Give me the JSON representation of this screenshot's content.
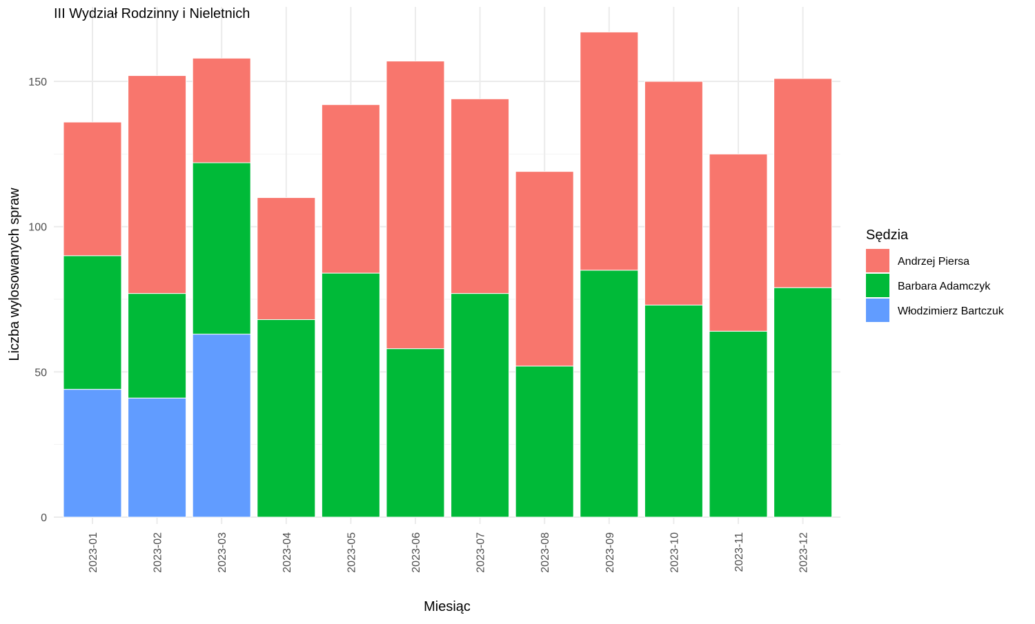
{
  "chart_data": {
    "type": "bar",
    "stacked": true,
    "title": "III Wydział Rodzinny i Nieletnich",
    "xlabel": "Miesiąc",
    "ylabel": "Liczba wylosowanych spraw",
    "ylim": [
      0,
      172
    ],
    "yticks": [
      0,
      50,
      100,
      150
    ],
    "ytick_labels": [
      "0",
      "50",
      "100",
      "150"
    ],
    "grid": true,
    "legend_title": "Sędzia",
    "legend_position": "right",
    "categories": [
      "2023-01",
      "2023-02",
      "2023-03",
      "2023-04",
      "2023-05",
      "2023-06",
      "2023-07",
      "2023-08",
      "2023-09",
      "2023-10",
      "2023-11",
      "2023-12"
    ],
    "series": [
      {
        "name": "Andrzej Piersa",
        "color": "#F8766D",
        "values": [
          46,
          75,
          36,
          42,
          58,
          99,
          67,
          67,
          82,
          77,
          61,
          72
        ]
      },
      {
        "name": "Barbara Adamczyk",
        "color": "#00BA38",
        "values": [
          46,
          36,
          59,
          68,
          84,
          58,
          77,
          52,
          85,
          73,
          64,
          79
        ]
      },
      {
        "name": "Włodzimierz Bartczuk",
        "color": "#619CFF",
        "values": [
          44,
          41,
          63,
          0,
          0,
          0,
          0,
          0,
          0,
          0,
          0,
          0
        ]
      }
    ],
    "stack_order_bottom_to_top": [
      "Włodzimierz Bartczuk",
      "Barbara Adamczyk",
      "Andrzej Piersa"
    ]
  }
}
